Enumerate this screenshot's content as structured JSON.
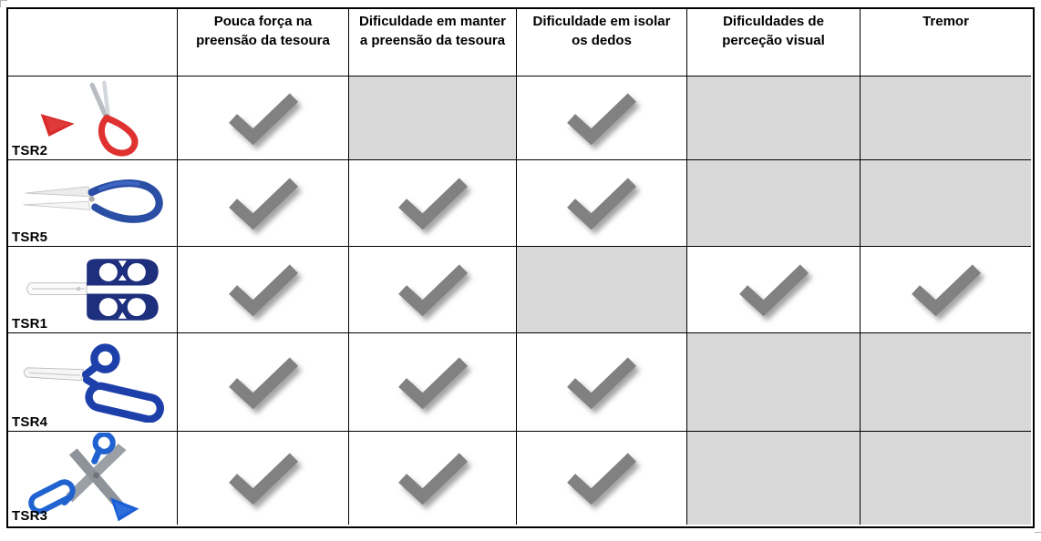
{
  "table": {
    "headers": [
      "",
      "Pouca força na preensão da tesoura",
      "Dificuldade em manter a preensão da tesoura",
      "Dificuldade em isolar os dedos",
      "Dificuldades de perceção visual",
      "Tremor"
    ],
    "rows": [
      {
        "id": "TSR2",
        "icon": "red-loop-scissors",
        "cells": [
          {
            "checked": true,
            "shaded": false
          },
          {
            "checked": false,
            "shaded": true
          },
          {
            "checked": true,
            "shaded": false
          },
          {
            "checked": false,
            "shaded": true
          },
          {
            "checked": false,
            "shaded": true
          }
        ]
      },
      {
        "id": "TSR5",
        "icon": "blue-loop-scissors",
        "cells": [
          {
            "checked": true,
            "shaded": false
          },
          {
            "checked": true,
            "shaded": false
          },
          {
            "checked": true,
            "shaded": false
          },
          {
            "checked": false,
            "shaded": true
          },
          {
            "checked": false,
            "shaded": true
          }
        ]
      },
      {
        "id": "TSR1",
        "icon": "navy-four-hole-scissors",
        "cells": [
          {
            "checked": true,
            "shaded": false
          },
          {
            "checked": true,
            "shaded": false
          },
          {
            "checked": false,
            "shaded": true
          },
          {
            "checked": true,
            "shaded": false
          },
          {
            "checked": true,
            "shaded": false
          }
        ]
      },
      {
        "id": "TSR4",
        "icon": "blue-oval-handle-scissors",
        "cells": [
          {
            "checked": true,
            "shaded": false
          },
          {
            "checked": true,
            "shaded": false
          },
          {
            "checked": true,
            "shaded": false
          },
          {
            "checked": false,
            "shaded": true
          },
          {
            "checked": false,
            "shaded": true
          }
        ]
      },
      {
        "id": "TSR3",
        "icon": "blue-open-scissors",
        "cells": [
          {
            "checked": true,
            "shaded": false
          },
          {
            "checked": true,
            "shaded": false
          },
          {
            "checked": true,
            "shaded": false
          },
          {
            "checked": false,
            "shaded": true
          },
          {
            "checked": false,
            "shaded": true
          }
        ]
      }
    ]
  },
  "colors": {
    "shaded_cell": "#d9d9d9",
    "checkmark": "#818181",
    "border": "#000000",
    "background": "#ffffff"
  }
}
